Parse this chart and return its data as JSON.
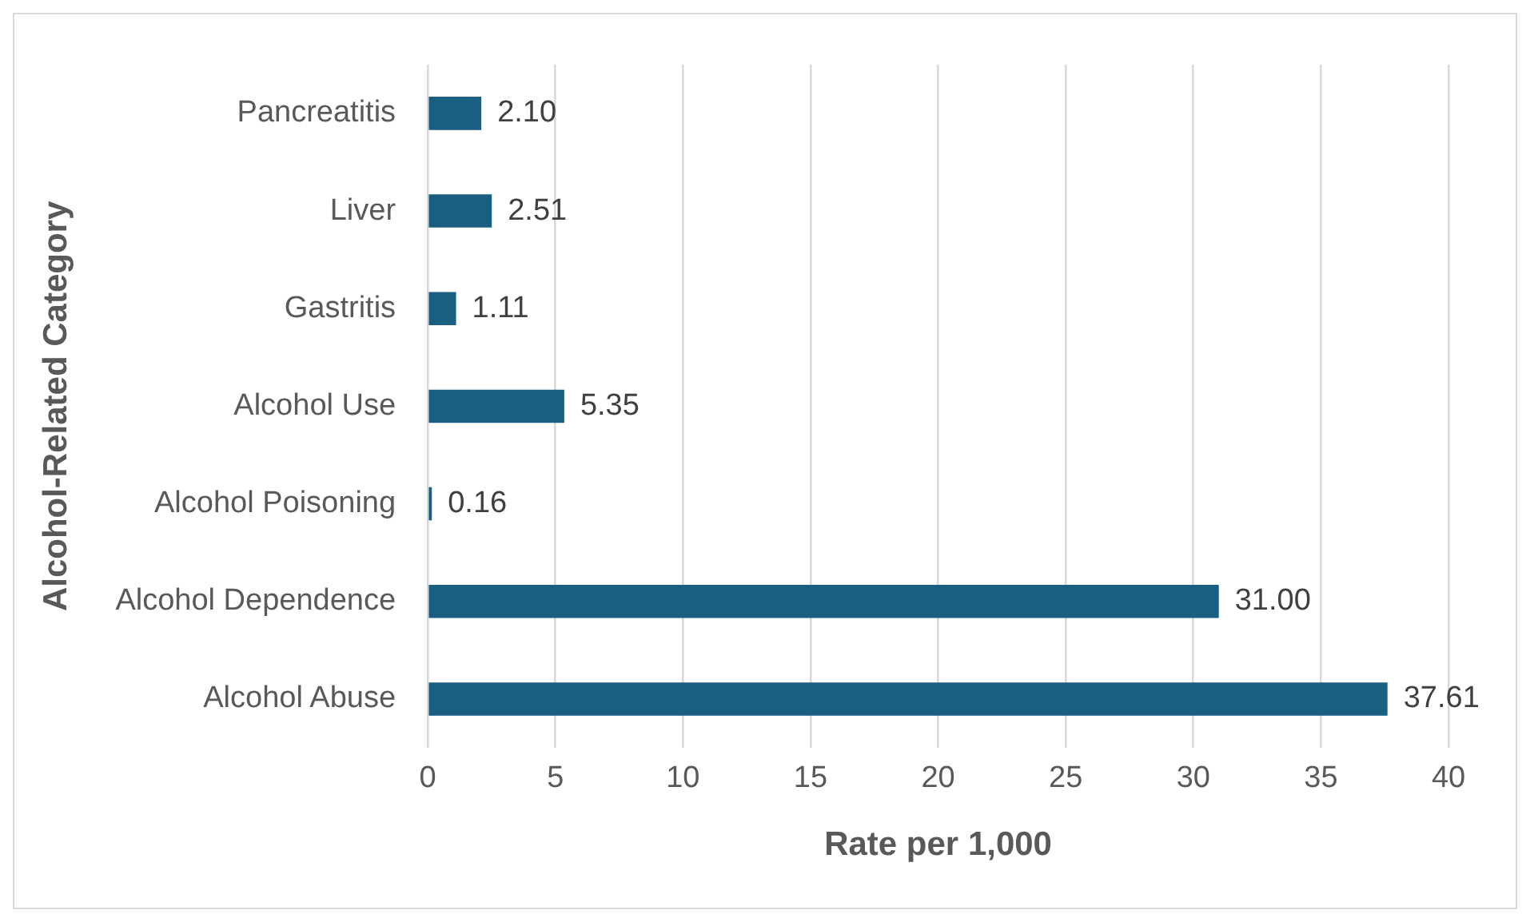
{
  "chart_data": {
    "type": "bar",
    "orientation": "horizontal",
    "xlabel": "Rate per 1,000",
    "ylabel": "Alcohol-Related Category",
    "categories": [
      "Pancreatitis",
      "Liver",
      "Gastritis",
      "Alcohol Use",
      "Alcohol Poisoning",
      "Alcohol Dependence",
      "Alcohol Abuse"
    ],
    "values": [
      2.1,
      2.51,
      1.11,
      5.35,
      0.16,
      31.0,
      37.61
    ],
    "value_labels": [
      "2.10",
      "2.51",
      "1.11",
      "5.35",
      "0.16",
      "31.00",
      "37.61"
    ],
    "color": "#1a5e82",
    "xlim": [
      0,
      40
    ],
    "xticks": [
      0,
      5,
      10,
      15,
      20,
      25,
      30,
      35,
      40
    ],
    "grid": "x"
  }
}
